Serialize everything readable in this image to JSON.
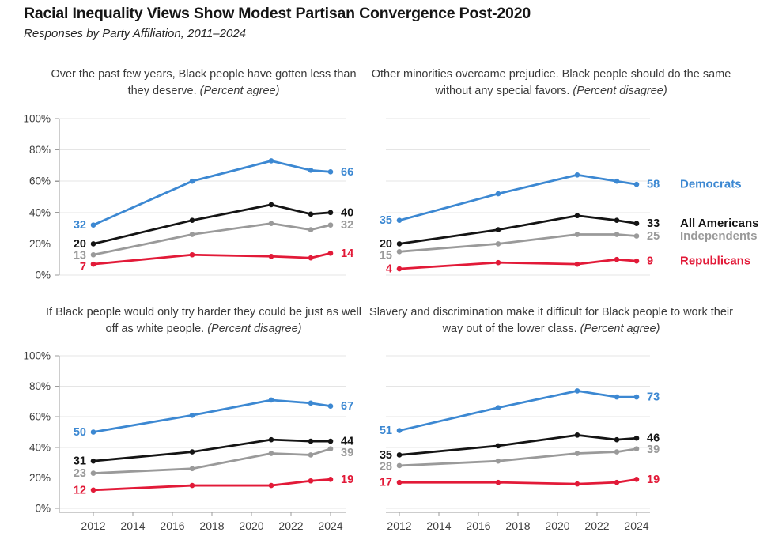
{
  "header": {
    "title": "Racial Inequality Views Show Modest Partisan Convergence Post-2020",
    "subtitle": "Responses by Party Affiliation, 2011–2024"
  },
  "axes": {
    "y_ticks": [
      "0%",
      "20%",
      "40%",
      "60%",
      "80%",
      "100%"
    ],
    "y_tick_values": [
      0,
      20,
      40,
      60,
      80,
      100
    ],
    "x_ticks": [
      "2012",
      "2014",
      "2016",
      "2018",
      "2020",
      "2022",
      "2024"
    ],
    "x_tick_values": [
      2012,
      2014,
      2016,
      2018,
      2020,
      2022,
      2024
    ],
    "ylim": [
      0,
      100
    ],
    "grid": "horizontal"
  },
  "colors": {
    "democrats": "#3c88d2",
    "all_americans": "#141414",
    "independents": "#9a9a9a",
    "republicans": "#e21a38",
    "gridline": "#e5e5e5",
    "axis": "#9b9b9b",
    "tick_text": "#3f3f3f"
  },
  "chart_data": [
    {
      "type": "line",
      "position": "top-left",
      "title": "Over the past few years, Black people have gotten less than they deserve.",
      "measure": "(Percent agree)",
      "x": [
        2012,
        2017,
        2021,
        2023,
        2024
      ],
      "series": [
        {
          "name": "Democrats",
          "color": "#3c88d2",
          "values": [
            32,
            60,
            73,
            67,
            66
          ]
        },
        {
          "name": "All Americans",
          "color": "#141414",
          "values": [
            20,
            35,
            45,
            39,
            40
          ]
        },
        {
          "name": "Independents",
          "color": "#9a9a9a",
          "values": [
            13,
            26,
            33,
            29,
            32
          ]
        },
        {
          "name": "Republicans",
          "color": "#e21a38",
          "values": [
            7,
            13,
            12,
            11,
            14
          ]
        }
      ],
      "show_y_labels": true,
      "show_x_labels": false,
      "legend": false
    },
    {
      "type": "line",
      "position": "top-right",
      "title": "Other minorities overcame prejudice. Black people should do the same without any special favors.",
      "measure": "(Percent disagree)",
      "x": [
        2012,
        2017,
        2021,
        2023,
        2024
      ],
      "series": [
        {
          "name": "Democrats",
          "color": "#3c88d2",
          "values": [
            35,
            52,
            64,
            60,
            58
          ]
        },
        {
          "name": "All Americans",
          "color": "#141414",
          "values": [
            20,
            29,
            38,
            35,
            33
          ]
        },
        {
          "name": "Independents",
          "color": "#9a9a9a",
          "values": [
            15,
            20,
            26,
            26,
            25
          ]
        },
        {
          "name": "Republicans",
          "color": "#e21a38",
          "values": [
            4,
            8,
            7,
            10,
            9
          ]
        }
      ],
      "show_y_labels": false,
      "show_x_labels": false,
      "legend": true,
      "legend_position": "right"
    },
    {
      "type": "line",
      "position": "bottom-left",
      "title": "If Black people would only try harder they could be just as well off as white people.",
      "measure": "(Percent disagree)",
      "x": [
        2012,
        2017,
        2021,
        2023,
        2024
      ],
      "series": [
        {
          "name": "Democrats",
          "color": "#3c88d2",
          "values": [
            50,
            61,
            71,
            69,
            67
          ]
        },
        {
          "name": "All Americans",
          "color": "#141414",
          "values": [
            31,
            37,
            45,
            44,
            44
          ]
        },
        {
          "name": "Independents",
          "color": "#9a9a9a",
          "values": [
            23,
            26,
            36,
            35,
            39
          ]
        },
        {
          "name": "Republicans",
          "color": "#e21a38",
          "values": [
            12,
            15,
            15,
            18,
            19
          ]
        }
      ],
      "show_y_labels": true,
      "show_x_labels": true,
      "legend": false
    },
    {
      "type": "line",
      "position": "bottom-right",
      "title": "Slavery and discrimination make it difficult for Black people to work their way out of the lower class.",
      "measure": "(Percent agree)",
      "x": [
        2012,
        2017,
        2021,
        2023,
        2024
      ],
      "series": [
        {
          "name": "Democrats",
          "color": "#3c88d2",
          "values": [
            51,
            66,
            77,
            73,
            73
          ]
        },
        {
          "name": "All Americans",
          "color": "#141414",
          "values": [
            35,
            41,
            48,
            45,
            46
          ]
        },
        {
          "name": "Independents",
          "color": "#9a9a9a",
          "values": [
            28,
            31,
            36,
            37,
            39
          ]
        },
        {
          "name": "Republicans",
          "color": "#e21a38",
          "values": [
            17,
            17,
            16,
            17,
            19
          ]
        }
      ],
      "show_y_labels": false,
      "show_x_labels": true,
      "legend": false
    }
  ]
}
